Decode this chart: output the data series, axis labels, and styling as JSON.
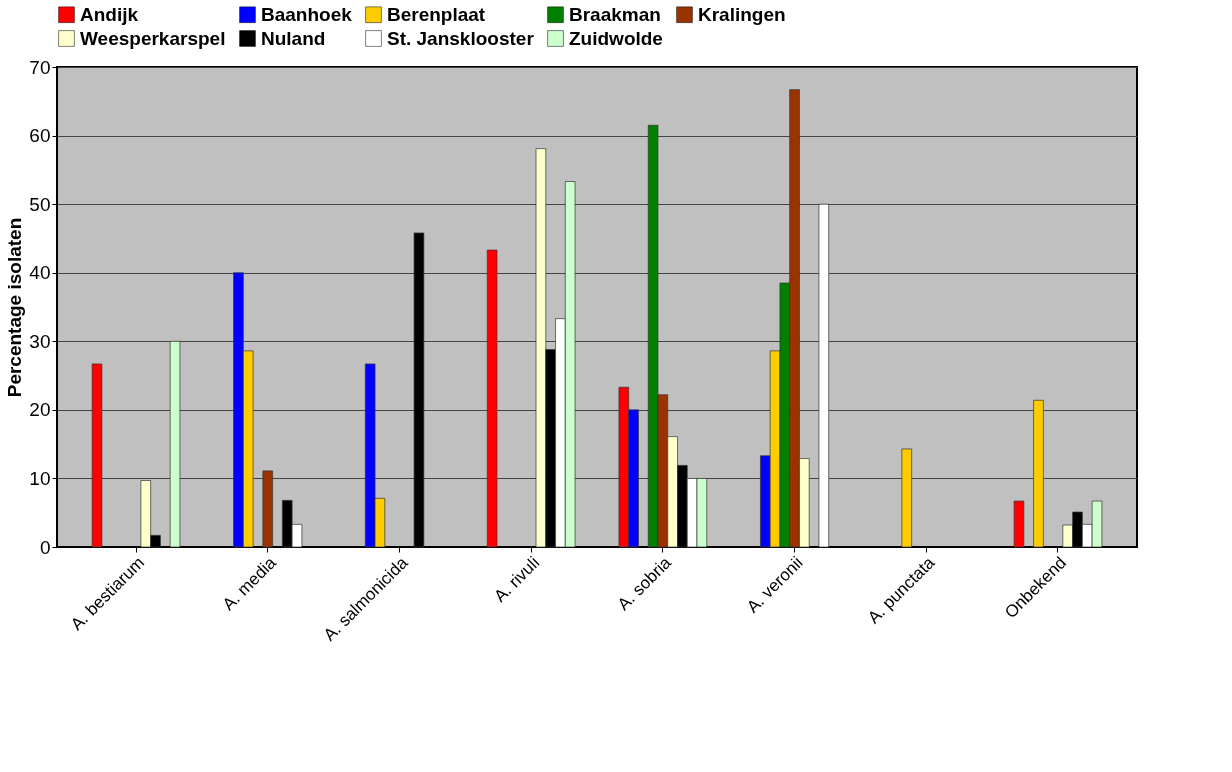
{
  "chart_data": {
    "type": "bar",
    "ylabel": "Percentage isolaten",
    "categories": [
      "A. bestiarum",
      "A. media",
      "A. salmonicida",
      "A. rivuli",
      "A. sobria",
      "A. veronii",
      "A. punctata",
      "Onbekend"
    ],
    "series": [
      {
        "name": "Andijk",
        "color": "#ff0000",
        "values": [
          26.7,
          null,
          null,
          43.3,
          23.3,
          null,
          null,
          6.7
        ]
      },
      {
        "name": "Baanhoek",
        "color": "#0000ff",
        "values": [
          null,
          40,
          26.7,
          null,
          20,
          13.3,
          null,
          null
        ]
      },
      {
        "name": "Berenplaat",
        "color": "#ffcc00",
        "values": [
          null,
          28.6,
          7.1,
          null,
          null,
          28.6,
          14.3,
          21.4
        ]
      },
      {
        "name": "Braakman",
        "color": "#008000",
        "values": [
          null,
          null,
          null,
          null,
          61.5,
          38.5,
          null,
          null
        ]
      },
      {
        "name": "Kralingen",
        "color": "#993300",
        "values": [
          null,
          11.1,
          null,
          null,
          22.2,
          66.7,
          null,
          null
        ]
      },
      {
        "name": "Weesperkarspel",
        "color": "#ffffcc",
        "values": [
          9.7,
          null,
          null,
          58.1,
          16.1,
          12.9,
          null,
          3.2
        ]
      },
      {
        "name": "Nuland",
        "color": "#000000",
        "values": [
          1.7,
          6.8,
          45.8,
          28.8,
          11.9,
          null,
          null,
          5.1
        ]
      },
      {
        "name": "St. Jansklooster",
        "color": "#ffffff",
        "values": [
          null,
          3.3,
          null,
          33.3,
          10,
          50,
          null,
          3.3
        ]
      },
      {
        "name": "Zuidwolde",
        "color": "#ccffcc",
        "values": [
          30,
          null,
          null,
          53.3,
          10,
          null,
          null,
          6.7
        ]
      }
    ],
    "ylim": [
      0,
      70
    ],
    "yticks": [
      0,
      10,
      20,
      30,
      40,
      50,
      60,
      70
    ],
    "grid": "y",
    "legend": "top"
  }
}
